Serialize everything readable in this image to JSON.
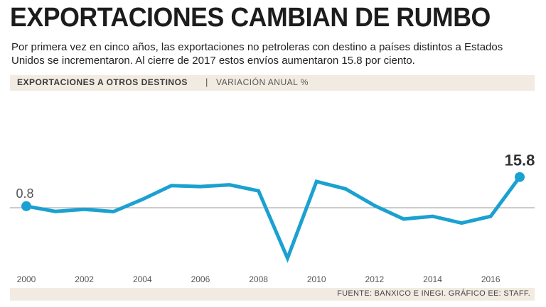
{
  "title": "EXPORTACIONES CAMBIAN DE RUMBO",
  "subtitle": "Por primera vez en cinco años, las exportaciones no petroleras con destino a países distintos a Estados Unidos se incrementaron. Al cierre de 2017 estos envíos aumentaron 15.8 por ciento.",
  "header": {
    "left_label": "EXPORTACIONES A OTROS DESTINOS",
    "separator": "|",
    "right_label": "VARIACIÓN ANUAL %"
  },
  "footer": {
    "source": "FUENTE: BANXICO E INEGI. GRÁFICO EE: STAFF."
  },
  "colors": {
    "line": "#1ba1d1",
    "zero_line": "#9a9a9a",
    "band": "#f1ebe2"
  },
  "chart_data": {
    "type": "line",
    "title": "EXPORTACIONES A OTROS DESTINOS",
    "ylabel": "VARIACIÓN ANUAL %",
    "xlabel": "",
    "x": [
      2000,
      2001,
      2002,
      2003,
      2004,
      2005,
      2006,
      2007,
      2008,
      2009,
      2010,
      2011,
      2012,
      2013,
      2014,
      2015,
      2016,
      2017
    ],
    "values": [
      0.8,
      -1.9,
      -0.8,
      -2.0,
      4.3,
      11.4,
      10.9,
      11.8,
      8.7,
      -26.0,
      13.5,
      9.7,
      1.1,
      -5.8,
      -4.4,
      -7.9,
      -4.4,
      15.8
    ],
    "xticks": [
      "2000",
      "2002",
      "2004",
      "2006",
      "2008",
      "2010",
      "2012",
      "2014",
      "2016"
    ],
    "ylim": [
      -30,
      15
    ],
    "zero_line": true,
    "grid": false,
    "annotations": [
      {
        "x": 2000,
        "text": "0.8",
        "highlight": false
      },
      {
        "x": 2017,
        "text": "15.8",
        "highlight": true
      }
    ]
  }
}
